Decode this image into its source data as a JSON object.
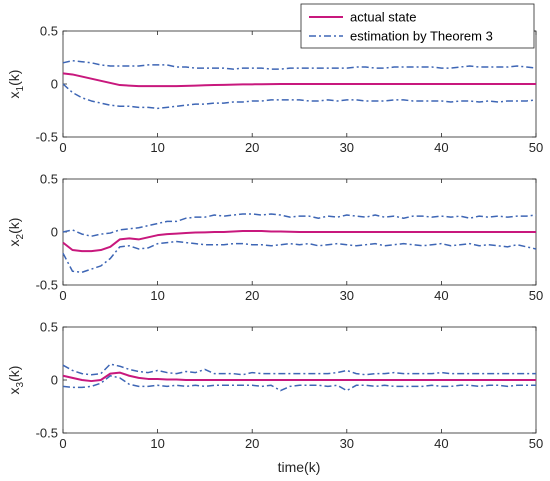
{
  "chart_data": {
    "type": "line",
    "xlabel": "time(k)",
    "xlim": [
      0,
      50
    ],
    "xticks": [
      0,
      10,
      20,
      30,
      40,
      50
    ],
    "legend": {
      "placement": "top-right",
      "entries": [
        "actual state",
        "estimation by Theorem 3"
      ]
    },
    "colors": {
      "actual": "#c8187d",
      "estimation": "#3e66b5"
    },
    "panels": [
      {
        "ylabel_base": "x",
        "ylabel_sub": "1",
        "ylabel_suffix": "(k)",
        "ylim": [
          -0.5,
          0.5
        ],
        "yticks": [
          -0.5,
          0,
          0.5
        ],
        "series": [
          {
            "name": "actual state",
            "style": "solid",
            "x": [
              0,
              1,
              2,
              3,
              4,
              5,
              6,
              7,
              8,
              9,
              10,
              11,
              12,
              13,
              14,
              15,
              16,
              17,
              18,
              19,
              20,
              21,
              22,
              23,
              24,
              25,
              26,
              27,
              28,
              29,
              30,
              31,
              32,
              33,
              34,
              35,
              36,
              37,
              38,
              39,
              40,
              41,
              42,
              43,
              44,
              45,
              46,
              47,
              48,
              49,
              50
            ],
            "y": [
              0.1,
              0.09,
              0.07,
              0.05,
              0.03,
              0.01,
              -0.01,
              -0.015,
              -0.02,
              -0.02,
              -0.02,
              -0.02,
              -0.02,
              -0.018,
              -0.015,
              -0.012,
              -0.01,
              -0.008,
              -0.006,
              -0.004,
              -0.003,
              -0.002,
              -0.001,
              0,
              0,
              0,
              0,
              0,
              0,
              0,
              0,
              0,
              0,
              0,
              0,
              0,
              0,
              0,
              0,
              0,
              0,
              0,
              0,
              0,
              0,
              0,
              0,
              0,
              0,
              0,
              0
            ]
          },
          {
            "name": "estimation by Theorem 3",
            "style": "dashdot",
            "x": [
              0,
              1,
              2,
              3,
              4,
              5,
              6,
              7,
              8,
              9,
              10,
              11,
              12,
              13,
              14,
              15,
              16,
              17,
              18,
              19,
              20,
              21,
              22,
              23,
              24,
              25,
              26,
              27,
              28,
              29,
              30,
              31,
              32,
              33,
              34,
              35,
              36,
              37,
              38,
              39,
              40,
              41,
              42,
              43,
              44,
              45,
              46,
              47,
              48,
              49,
              50
            ],
            "y": [
              0.2,
              0.22,
              0.21,
              0.2,
              0.18,
              0.17,
              0.17,
              0.17,
              0.17,
              0.18,
              0.18,
              0.18,
              0.16,
              0.16,
              0.15,
              0.15,
              0.15,
              0.15,
              0.14,
              0.15,
              0.15,
              0.15,
              0.14,
              0.14,
              0.15,
              0.15,
              0.15,
              0.15,
              0.15,
              0.15,
              0.15,
              0.16,
              0.16,
              0.15,
              0.15,
              0.16,
              0.16,
              0.16,
              0.16,
              0.16,
              0.15,
              0.15,
              0.16,
              0.17,
              0.16,
              0.16,
              0.16,
              0.16,
              0.17,
              0.16,
              0.15
            ]
          },
          {
            "name": "",
            "style": "dashdot",
            "x": [
              0,
              1,
              2,
              3,
              4,
              5,
              6,
              7,
              8,
              9,
              10,
              11,
              12,
              13,
              14,
              15,
              16,
              17,
              18,
              19,
              20,
              21,
              22,
              23,
              24,
              25,
              26,
              27,
              28,
              29,
              30,
              31,
              32,
              33,
              34,
              35,
              36,
              37,
              38,
              39,
              40,
              41,
              42,
              43,
              44,
              45,
              46,
              47,
              48,
              49,
              50
            ],
            "y": [
              0.0,
              -0.08,
              -0.13,
              -0.16,
              -0.18,
              -0.2,
              -0.21,
              -0.21,
              -0.22,
              -0.22,
              -0.23,
              -0.22,
              -0.21,
              -0.2,
              -0.19,
              -0.19,
              -0.18,
              -0.18,
              -0.17,
              -0.17,
              -0.16,
              -0.16,
              -0.15,
              -0.15,
              -0.15,
              -0.15,
              -0.16,
              -0.16,
              -0.15,
              -0.16,
              -0.15,
              -0.15,
              -0.16,
              -0.16,
              -0.16,
              -0.15,
              -0.15,
              -0.16,
              -0.16,
              -0.16,
              -0.16,
              -0.17,
              -0.16,
              -0.16,
              -0.17,
              -0.16,
              -0.17,
              -0.16,
              -0.16,
              -0.16,
              -0.15
            ]
          }
        ]
      },
      {
        "ylabel_base": "x",
        "ylabel_sub": "2",
        "ylabel_suffix": "(k)",
        "ylim": [
          -0.5,
          0.5
        ],
        "yticks": [
          -0.5,
          0,
          0.5
        ],
        "series": [
          {
            "name": "actual state",
            "style": "solid",
            "x": [
              0,
              1,
              2,
              3,
              4,
              5,
              6,
              7,
              8,
              9,
              10,
              11,
              12,
              13,
              14,
              15,
              16,
              17,
              18,
              19,
              20,
              21,
              22,
              23,
              24,
              25,
              26,
              27,
              28,
              29,
              30,
              31,
              32,
              33,
              34,
              35,
              36,
              37,
              38,
              39,
              40,
              41,
              42,
              43,
              44,
              45,
              46,
              47,
              48,
              49,
              50
            ],
            "y": [
              -0.1,
              -0.17,
              -0.18,
              -0.18,
              -0.17,
              -0.14,
              -0.07,
              -0.06,
              -0.07,
              -0.05,
              -0.03,
              -0.02,
              -0.015,
              -0.01,
              -0.005,
              -0.003,
              0,
              0,
              0.005,
              0.01,
              0.01,
              0.01,
              0.005,
              0.005,
              0.002,
              0,
              0,
              0,
              0,
              0,
              0,
              0,
              0,
              0,
              0,
              0,
              0,
              0,
              0,
              0,
              0,
              0,
              0,
              0,
              0,
              0,
              0,
              0,
              0,
              0,
              0
            ]
          },
          {
            "name": "estimation by Theorem 3",
            "style": "dashdot",
            "x": [
              0,
              1,
              2,
              3,
              4,
              5,
              6,
              7,
              8,
              9,
              10,
              11,
              12,
              13,
              14,
              15,
              16,
              17,
              18,
              19,
              20,
              21,
              22,
              23,
              24,
              25,
              26,
              27,
              28,
              29,
              30,
              31,
              32,
              33,
              34,
              35,
              36,
              37,
              38,
              39,
              40,
              41,
              42,
              43,
              44,
              45,
              46,
              47,
              48,
              49,
              50
            ],
            "y": [
              0.0,
              0.02,
              -0.02,
              -0.04,
              -0.02,
              -0.01,
              0.02,
              0.03,
              0.04,
              0.06,
              0.08,
              0.1,
              0.1,
              0.13,
              0.14,
              0.14,
              0.16,
              0.15,
              0.16,
              0.17,
              0.17,
              0.16,
              0.17,
              0.16,
              0.14,
              0.15,
              0.15,
              0.13,
              0.15,
              0.14,
              0.16,
              0.15,
              0.14,
              0.16,
              0.14,
              0.15,
              0.13,
              0.15,
              0.15,
              0.14,
              0.15,
              0.14,
              0.15,
              0.13,
              0.15,
              0.14,
              0.15,
              0.14,
              0.15,
              0.15,
              0.16
            ]
          },
          {
            "name": "",
            "style": "dashdot",
            "x": [
              0,
              1,
              2,
              3,
              4,
              5,
              6,
              7,
              8,
              9,
              10,
              11,
              12,
              13,
              14,
              15,
              16,
              17,
              18,
              19,
              20,
              21,
              22,
              23,
              24,
              25,
              26,
              27,
              28,
              29,
              30,
              31,
              32,
              33,
              34,
              35,
              36,
              37,
              38,
              39,
              40,
              41,
              42,
              43,
              44,
              45,
              46,
              47,
              48,
              49,
              50
            ],
            "y": [
              -0.2,
              -0.37,
              -0.38,
              -0.35,
              -0.32,
              -0.25,
              -0.14,
              -0.13,
              -0.16,
              -0.15,
              -0.11,
              -0.1,
              -0.09,
              -0.1,
              -0.11,
              -0.12,
              -0.12,
              -0.12,
              -0.11,
              -0.11,
              -0.12,
              -0.12,
              -0.13,
              -0.12,
              -0.11,
              -0.12,
              -0.11,
              -0.13,
              -0.12,
              -0.11,
              -0.12,
              -0.13,
              -0.12,
              -0.11,
              -0.13,
              -0.12,
              -0.11,
              -0.12,
              -0.13,
              -0.12,
              -0.11,
              -0.13,
              -0.12,
              -0.11,
              -0.13,
              -0.12,
              -0.13,
              -0.14,
              -0.12,
              -0.14,
              -0.16
            ]
          }
        ]
      },
      {
        "ylabel_base": "x",
        "ylabel_sub": "3",
        "ylabel_suffix": "(k)",
        "ylim": [
          -0.5,
          0.5
        ],
        "yticks": [
          -0.5,
          0,
          0.5
        ],
        "series": [
          {
            "name": "actual state",
            "style": "solid",
            "x": [
              0,
              1,
              2,
              3,
              4,
              5,
              6,
              7,
              8,
              9,
              10,
              11,
              12,
              13,
              14,
              15,
              16,
              17,
              18,
              19,
              20,
              21,
              22,
              23,
              24,
              25,
              26,
              27,
              28,
              29,
              30,
              31,
              32,
              33,
              34,
              35,
              36,
              37,
              38,
              39,
              40,
              41,
              42,
              43,
              44,
              45,
              46,
              47,
              48,
              49,
              50
            ],
            "y": [
              0.04,
              0.02,
              0.0,
              -0.01,
              0.0,
              0.06,
              0.07,
              0.04,
              0.02,
              0.01,
              0.01,
              0.005,
              0.005,
              0,
              0,
              0,
              0,
              0,
              0,
              0,
              0,
              0,
              0,
              0,
              0,
              0,
              0,
              0,
              0,
              0,
              0,
              0,
              0,
              0,
              0,
              0,
              0,
              0,
              0,
              0,
              0,
              0,
              0,
              0,
              0,
              0,
              0,
              0,
              0,
              0,
              0
            ]
          },
          {
            "name": "estimation by Theorem 3",
            "style": "dashdot",
            "x": [
              0,
              1,
              2,
              3,
              4,
              5,
              6,
              7,
              8,
              9,
              10,
              11,
              12,
              13,
              14,
              15,
              16,
              17,
              18,
              19,
              20,
              21,
              22,
              23,
              24,
              25,
              26,
              27,
              28,
              29,
              30,
              31,
              32,
              33,
              34,
              35,
              36,
              37,
              38,
              39,
              40,
              41,
              42,
              43,
              44,
              45,
              46,
              47,
              48,
              49,
              50
            ],
            "y": [
              0.14,
              0.09,
              0.06,
              0.05,
              0.06,
              0.15,
              0.13,
              0.1,
              0.08,
              0.07,
              0.09,
              0.07,
              0.06,
              0.08,
              0.07,
              0.1,
              0.06,
              0.06,
              0.06,
              0.05,
              0.07,
              0.06,
              0.06,
              0.06,
              0.06,
              0.06,
              0.06,
              0.06,
              0.06,
              0.07,
              0.09,
              0.06,
              0.05,
              0.06,
              0.06,
              0.07,
              0.06,
              0.06,
              0.06,
              0.06,
              0.07,
              0.06,
              0.06,
              0.06,
              0.06,
              0.06,
              0.06,
              0.06,
              0.06,
              0.06,
              0.06
            ]
          },
          {
            "name": "",
            "style": "dashdot",
            "x": [
              0,
              1,
              2,
              3,
              4,
              5,
              6,
              7,
              8,
              9,
              10,
              11,
              12,
              13,
              14,
              15,
              16,
              17,
              18,
              19,
              20,
              21,
              22,
              23,
              24,
              25,
              26,
              27,
              28,
              29,
              30,
              31,
              32,
              33,
              34,
              35,
              36,
              37,
              38,
              39,
              40,
              41,
              42,
              43,
              44,
              45,
              46,
              47,
              48,
              49,
              50
            ],
            "y": [
              -0.06,
              -0.07,
              -0.07,
              -0.06,
              -0.03,
              0.04,
              0.02,
              -0.04,
              -0.06,
              -0.06,
              -0.05,
              -0.06,
              -0.05,
              -0.06,
              -0.05,
              -0.06,
              -0.05,
              -0.05,
              -0.05,
              -0.05,
              -0.05,
              -0.06,
              -0.05,
              -0.1,
              -0.06,
              -0.05,
              -0.05,
              -0.05,
              -0.06,
              -0.05,
              -0.1,
              -0.05,
              -0.05,
              -0.06,
              -0.05,
              -0.06,
              -0.06,
              -0.06,
              -0.06,
              -0.05,
              -0.06,
              -0.06,
              -0.05,
              -0.05,
              -0.06,
              -0.05,
              -0.05,
              -0.06,
              -0.05,
              -0.05,
              -0.05
            ]
          }
        ]
      }
    ]
  }
}
